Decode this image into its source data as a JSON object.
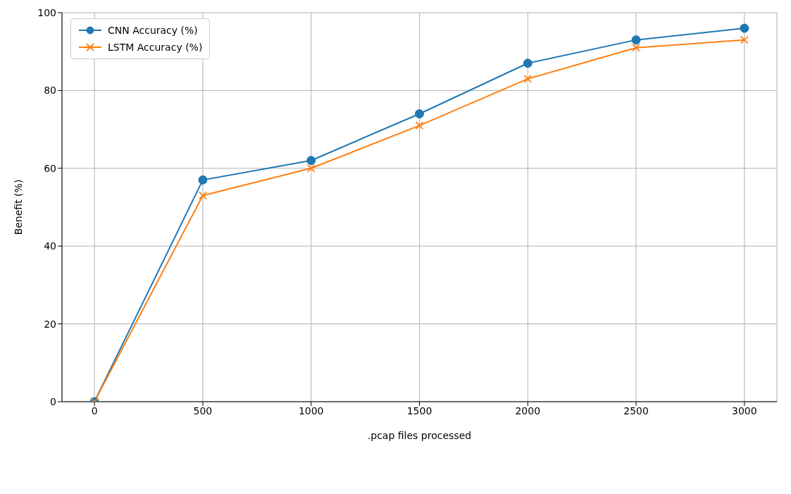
{
  "chart_data": {
    "type": "line",
    "xlabel": ".pcap files processed",
    "ylabel": "Benefit (%)",
    "x": [
      0,
      500,
      1000,
      1500,
      2000,
      2500,
      3000
    ],
    "series": [
      {
        "name": "CNN Accuracy (%)",
        "color": "#1f77b4",
        "marker": "circle",
        "values": [
          0,
          57,
          62,
          74,
          87,
          93,
          96
        ]
      },
      {
        "name": "LSTM Accuracy (%)",
        "color": "#ff7f0e",
        "marker": "cross",
        "values": [
          0,
          53,
          60,
          71,
          83,
          91,
          93
        ]
      }
    ],
    "xlim": [
      -150,
      3150
    ],
    "xticks": [
      0,
      500,
      1000,
      1500,
      2000,
      2500,
      3000
    ],
    "ylim": [
      0,
      100
    ],
    "yticks": [
      0,
      20,
      40,
      60,
      80,
      100
    ],
    "grid": true,
    "legend": "top left",
    "line_style": "solid"
  }
}
